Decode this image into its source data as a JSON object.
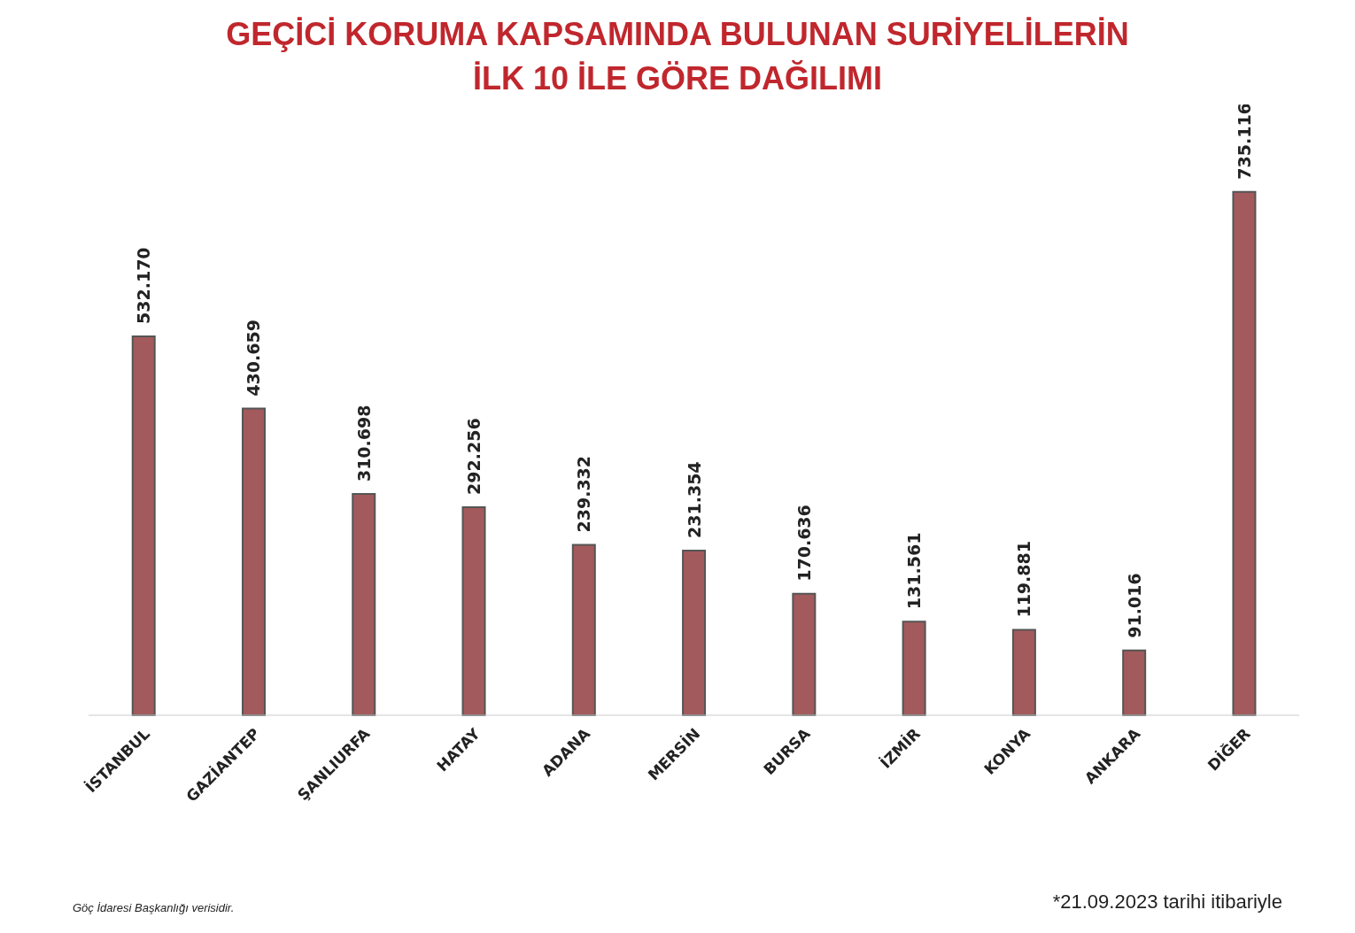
{
  "chart_data": {
    "type": "bar",
    "title": "GEÇİCİ KORUMA KAPSAMINDA BULUNAN SURİYELİLERİN\nİLK 10 İLE GÖRE DAĞILIMI",
    "categories": [
      "İSTANBUL",
      "GAZİANTEP",
      "ŞANLIURFA",
      "HATAY",
      "ADANA",
      "MERSİN",
      "BURSA",
      "İZMİR",
      "KONYA",
      "ANKARA",
      "DİĞER"
    ],
    "values": [
      532170,
      430659,
      310698,
      292256,
      239332,
      231354,
      170636,
      131561,
      119881,
      91016,
      735116
    ],
    "value_labels": [
      "532.170",
      "430.659",
      "310.698",
      "292.256",
      "239.332",
      "231.354",
      "170.636",
      "131.561",
      "119.881",
      "91.016",
      "735.116"
    ],
    "color": "#a35a5c",
    "annotations": [
      "Göç İdaresi Başkanlığı verisidir.",
      "*21.09.2023 tarihi itibariyle"
    ]
  }
}
